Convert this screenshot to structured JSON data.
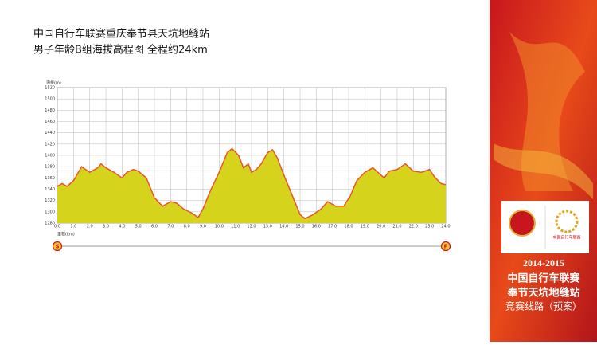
{
  "chart_data": {
    "type": "area",
    "title": "中国自行车联赛重庆奉节县天坑地缝站",
    "subtitle": "男子年龄B组海拔高程图 全程约24km",
    "y_label": "海拔(m)",
    "x_label": "里程(km)",
    "start_label": "S",
    "end_label": "F",
    "color": "#d5d31c",
    "line_color": "#e8552a",
    "grid": true,
    "x": [
      0,
      0.3,
      0.6,
      1.0,
      1.5,
      2.0,
      2.5,
      2.7,
      3.0,
      3.5,
      4.0,
      4.3,
      4.7,
      5.0,
      5.5,
      6.0,
      6.5,
      7.0,
      7.4,
      7.8,
      8.3,
      8.7,
      9.0,
      9.5,
      10.0,
      10.5,
      10.8,
      11.2,
      11.5,
      11.8,
      12.0,
      12.3,
      12.6,
      13.0,
      13.3,
      13.6,
      14.0,
      14.5,
      15.0,
      15.3,
      15.8,
      16.3,
      16.7,
      17.2,
      17.7,
      18.1,
      18.5,
      19.0,
      19.5,
      19.8,
      20.2,
      20.5,
      21.0,
      21.5,
      22.0,
      22.5,
      23.0,
      23.3,
      23.7,
      24.0
    ],
    "values": [
      1345,
      1350,
      1345,
      1355,
      1380,
      1370,
      1378,
      1385,
      1378,
      1370,
      1360,
      1370,
      1375,
      1372,
      1360,
      1325,
      1310,
      1318,
      1315,
      1305,
      1298,
      1290,
      1305,
      1340,
      1370,
      1405,
      1412,
      1400,
      1378,
      1385,
      1370,
      1375,
      1385,
      1405,
      1410,
      1395,
      1365,
      1330,
      1295,
      1288,
      1295,
      1305,
      1318,
      1310,
      1310,
      1328,
      1355,
      1370,
      1378,
      1370,
      1360,
      1372,
      1375,
      1385,
      1372,
      1370,
      1375,
      1362,
      1350,
      1348
    ],
    "xlim": [
      0,
      24
    ],
    "ylim": [
      1280,
      1520
    ],
    "xticks": [
      {
        "value": 0,
        "label": "0.0"
      },
      {
        "value": 1,
        "label": "1.0"
      },
      {
        "value": 2,
        "label": "2.0"
      },
      {
        "value": 3,
        "label": "3.0"
      },
      {
        "value": 4,
        "label": "4.0"
      },
      {
        "value": 5,
        "label": "5.0"
      },
      {
        "value": 6,
        "label": "6.0"
      },
      {
        "value": 7,
        "label": "7.0"
      },
      {
        "value": 8,
        "label": "8.0"
      },
      {
        "value": 9,
        "label": "9.0"
      },
      {
        "value": 10,
        "label": "10.0"
      },
      {
        "value": 11,
        "label": "11.0"
      },
      {
        "value": 12,
        "label": "12.0"
      },
      {
        "value": 13,
        "label": "13.0"
      },
      {
        "value": 14,
        "label": "14.0"
      },
      {
        "value": 15,
        "label": "15.0"
      },
      {
        "value": 16,
        "label": "16.0"
      },
      {
        "value": 17,
        "label": "17.0"
      },
      {
        "value": 18,
        "label": "18.0"
      },
      {
        "value": 19,
        "label": "19.0"
      },
      {
        "value": 20,
        "label": "20.0"
      },
      {
        "value": 21,
        "label": "21.0"
      },
      {
        "value": 22,
        "label": "22.0"
      },
      {
        "value": 23,
        "label": "23.0"
      },
      {
        "value": 24,
        "label": "24.0"
      }
    ],
    "yticks": [
      1280,
      1300,
      1320,
      1340,
      1360,
      1380,
      1400,
      1420,
      1440,
      1460,
      1480,
      1500,
      1520
    ]
  },
  "side_panel": {
    "season": "2014-2015",
    "league": "中国自行车联赛",
    "stage": "奉节天坑地缝站",
    "note": "竞赛线路（预案）",
    "logo_text": "中国自行车联赛"
  }
}
